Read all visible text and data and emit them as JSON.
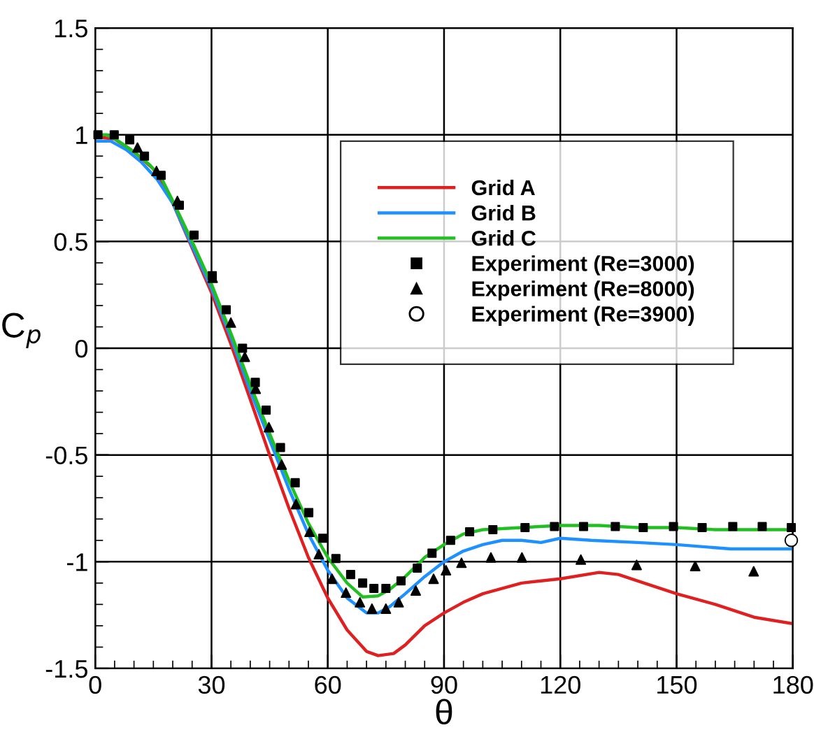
{
  "chart_data": {
    "type": "line",
    "xlabel": "θ",
    "ylabel": "C$_{p}$",
    "xlim": [
      0,
      180
    ],
    "ylim": [
      -1.5,
      1.5
    ],
    "xticks": [
      0,
      30,
      60,
      90,
      120,
      150,
      180
    ],
    "yticks": [
      -1.5,
      -1,
      -0.5,
      0,
      0.5,
      1,
      1.5
    ],
    "grid": true,
    "legend": "top right",
    "line_style": "solid",
    "series": [
      {
        "name": "Grid A",
        "color": "#e02020",
        "marker": "none",
        "x": [
          0,
          5,
          10,
          15,
          20,
          25,
          30,
          35,
          40,
          45,
          50,
          55,
          60,
          65,
          70,
          73,
          77,
          80,
          85,
          90,
          95,
          100,
          110,
          120,
          130,
          135,
          140,
          150,
          160,
          170,
          180
        ],
        "values": [
          0.99,
          0.98,
          0.92,
          0.84,
          0.68,
          0.47,
          0.26,
          0.02,
          -0.24,
          -0.5,
          -0.75,
          -0.98,
          -1.17,
          -1.32,
          -1.42,
          -1.44,
          -1.43,
          -1.39,
          -1.3,
          -1.24,
          -1.19,
          -1.15,
          -1.1,
          -1.08,
          -1.05,
          -1.06,
          -1.09,
          -1.15,
          -1.2,
          -1.26,
          -1.29
        ]
      },
      {
        "name": "Grid B",
        "color": "#1e90ff",
        "marker": "none",
        "x": [
          0,
          4,
          8,
          12,
          16,
          20,
          25,
          30,
          35,
          40,
          45,
          50,
          55,
          60,
          65,
          70,
          73,
          76,
          80,
          85,
          90,
          95,
          100,
          105,
          110,
          115,
          120,
          128,
          140,
          150,
          164,
          180
        ],
        "values": [
          0.97,
          0.97,
          0.93,
          0.87,
          0.79,
          0.68,
          0.48,
          0.28,
          0.05,
          -0.2,
          -0.43,
          -0.66,
          -0.87,
          -1.04,
          -1.17,
          -1.24,
          -1.24,
          -1.21,
          -1.15,
          -1.07,
          -1.0,
          -0.95,
          -0.92,
          -0.9,
          -0.9,
          -0.91,
          -0.89,
          -0.9,
          -0.91,
          -0.92,
          -0.94,
          -0.94
        ]
      },
      {
        "name": "Grid C",
        "color": "#20c020",
        "marker": "none",
        "x": [
          0,
          3,
          6,
          10,
          14,
          17,
          20,
          25,
          30,
          35,
          40,
          45,
          50,
          55,
          60,
          65,
          69,
          73,
          76,
          80,
          85,
          90,
          95,
          100,
          110,
          120,
          130,
          140,
          150,
          160,
          170,
          180
        ],
        "values": [
          1.0,
          1.0,
          0.97,
          0.92,
          0.86,
          0.8,
          0.69,
          0.5,
          0.3,
          0.07,
          -0.17,
          -0.4,
          -0.62,
          -0.82,
          -0.98,
          -1.1,
          -1.165,
          -1.16,
          -1.13,
          -1.07,
          -0.98,
          -0.92,
          -0.87,
          -0.85,
          -0.84,
          -0.83,
          -0.83,
          -0.84,
          -0.84,
          -0.85,
          -0.85,
          -0.85
        ]
      },
      {
        "name": "Experiment (Re=3000)",
        "type": "scatter",
        "color": "#000000",
        "marker": "square",
        "x": [
          0.7,
          4.9,
          8.9,
          12.7,
          17,
          21.7,
          25.5,
          30.2,
          33.8,
          38,
          41.3,
          44.1,
          47.8,
          51.6,
          55.1,
          58.7,
          62.1,
          65.9,
          69,
          71.9,
          75,
          78.9,
          83.1,
          86.9,
          91.7,
          96.6,
          102.6,
          110.9,
          118.5,
          126,
          134.2,
          141.4,
          149.2,
          156.6,
          164.5,
          172.1,
          179.6
        ],
        "values": [
          1.0,
          1.0,
          0.976,
          0.9,
          0.81,
          0.67,
          0.53,
          0.34,
          0.18,
          0.0,
          -0.16,
          -0.29,
          -0.465,
          -0.63,
          -0.77,
          -0.89,
          -0.985,
          -1.06,
          -1.1,
          -1.125,
          -1.125,
          -1.09,
          -1.03,
          -0.96,
          -0.9,
          -0.86,
          -0.85,
          -0.84,
          -0.835,
          -0.835,
          -0.835,
          -0.84,
          -0.835,
          -0.84,
          -0.835,
          -0.835,
          -0.84
        ]
      },
      {
        "name": "Experiment (Re=8000)",
        "type": "scatter",
        "color": "#000000",
        "marker": "triangle",
        "x": [
          10.9,
          15.8,
          21.2,
          30.3,
          35,
          38.6,
          41.4,
          44.8,
          48.1,
          51.8,
          55.3,
          57.7,
          61.1,
          64.7,
          68.3,
          71.4,
          75,
          78.3,
          82.7,
          87.3,
          90.5,
          94.5,
          102.1,
          110.1,
          125.3,
          139.7,
          154.8,
          169.9
        ],
        "values": [
          0.94,
          0.83,
          0.69,
          0.33,
          0.12,
          -0.04,
          -0.19,
          -0.37,
          -0.545,
          -0.73,
          -0.86,
          -0.965,
          -1.08,
          -1.145,
          -1.19,
          -1.22,
          -1.22,
          -1.19,
          -1.135,
          -1.08,
          -1.04,
          -1.005,
          -0.98,
          -0.98,
          -0.99,
          -1.015,
          -1.02,
          -1.045
        ]
      },
      {
        "name": "Experiment (Re=3900)",
        "type": "scatter",
        "color": "#ffffff",
        "marker": "circle",
        "x": [
          179.6
        ],
        "values": [
          -0.9
        ]
      }
    ]
  }
}
